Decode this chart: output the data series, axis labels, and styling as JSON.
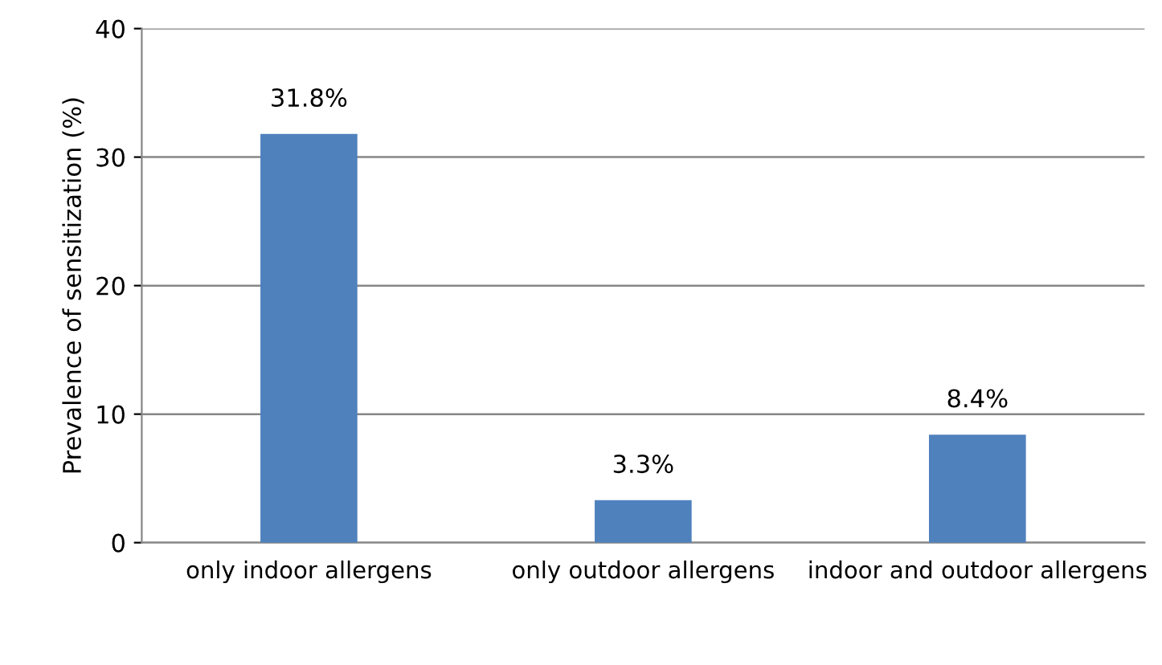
{
  "chart_data": {
    "type": "bar",
    "ylabel": "Prevalence of sensitization (%)",
    "categories": [
      "only indoor allergens",
      "only outdoor allergens",
      "indoor and outdoor allergens"
    ],
    "values": [
      31.8,
      3.3,
      8.4
    ],
    "value_labels": [
      "31.8%",
      "3.3%",
      "8.4%"
    ],
    "color": "#4f81bd",
    "ylim": [
      0,
      40
    ],
    "yticks": [
      0,
      10,
      20,
      30,
      40
    ],
    "grid": "y",
    "legend": false
  }
}
